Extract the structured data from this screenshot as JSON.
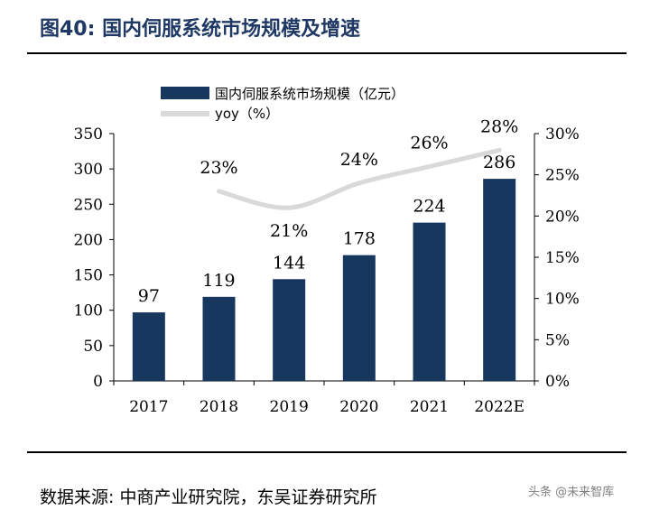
{
  "figure": {
    "title": "图40: 国内伺服系统市场规模及增速",
    "source": "数据来源: 中商产业研究院，东吴证券研究所",
    "watermark": "头条 @未来智库"
  },
  "colors": {
    "bar": "#17375e",
    "line": "#d9d9d9",
    "title": "#1f3864",
    "axis": "#000000"
  },
  "chart_data": {
    "type": "bar+line",
    "categories": [
      "2017",
      "2018",
      "2019",
      "2020",
      "2021",
      "2022E"
    ],
    "series": [
      {
        "name": "国内伺服系统市场规模（亿元）",
        "type": "bar",
        "axis": "left",
        "values": [
          97,
          119,
          144,
          178,
          224,
          286
        ],
        "labels": [
          "97",
          "119",
          "144",
          "178",
          "224",
          "286"
        ]
      },
      {
        "name": "yoy（%）",
        "type": "line",
        "axis": "right",
        "values": [
          null,
          23,
          21,
          24,
          26,
          28
        ],
        "labels": [
          "",
          "23%",
          "21%",
          "24%",
          "26%",
          "28%"
        ]
      }
    ],
    "left_axis": {
      "range": [
        0,
        350
      ],
      "ticks": [
        0,
        50,
        100,
        150,
        200,
        250,
        300,
        350
      ],
      "tick_labels": [
        "0",
        "50",
        "100",
        "150",
        "200",
        "250",
        "300",
        "350"
      ]
    },
    "right_axis": {
      "range": [
        0,
        30
      ],
      "ticks": [
        0,
        5,
        10,
        15,
        20,
        25,
        30
      ],
      "tick_labels": [
        "0%",
        "5%",
        "10%",
        "15%",
        "20%",
        "25%",
        "30%"
      ]
    },
    "legend_position": "top-center",
    "grid": false
  }
}
